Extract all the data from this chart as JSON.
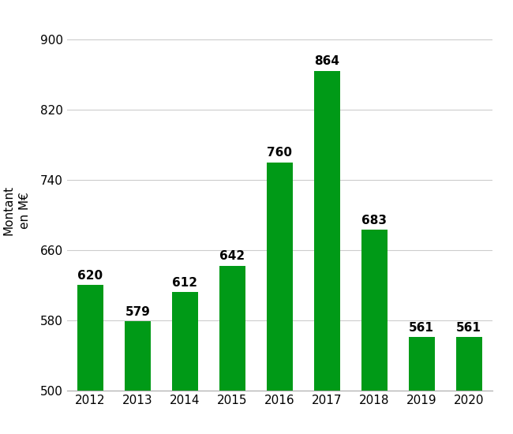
{
  "years": [
    2012,
    2013,
    2014,
    2015,
    2016,
    2017,
    2018,
    2019,
    2020
  ],
  "values": [
    620,
    579,
    612,
    642,
    760,
    864,
    683,
    561,
    561
  ],
  "bar_color": "#009A17",
  "ylabel": "Montant\nen M€",
  "ylim": [
    500,
    910
  ],
  "yticks": [
    500,
    580,
    660,
    740,
    820,
    900
  ],
  "background_color": "#ffffff",
  "grid_color": "#cccccc",
  "label_fontsize": 11,
  "ylabel_fontsize": 11,
  "tick_fontsize": 11,
  "bar_width": 0.55
}
